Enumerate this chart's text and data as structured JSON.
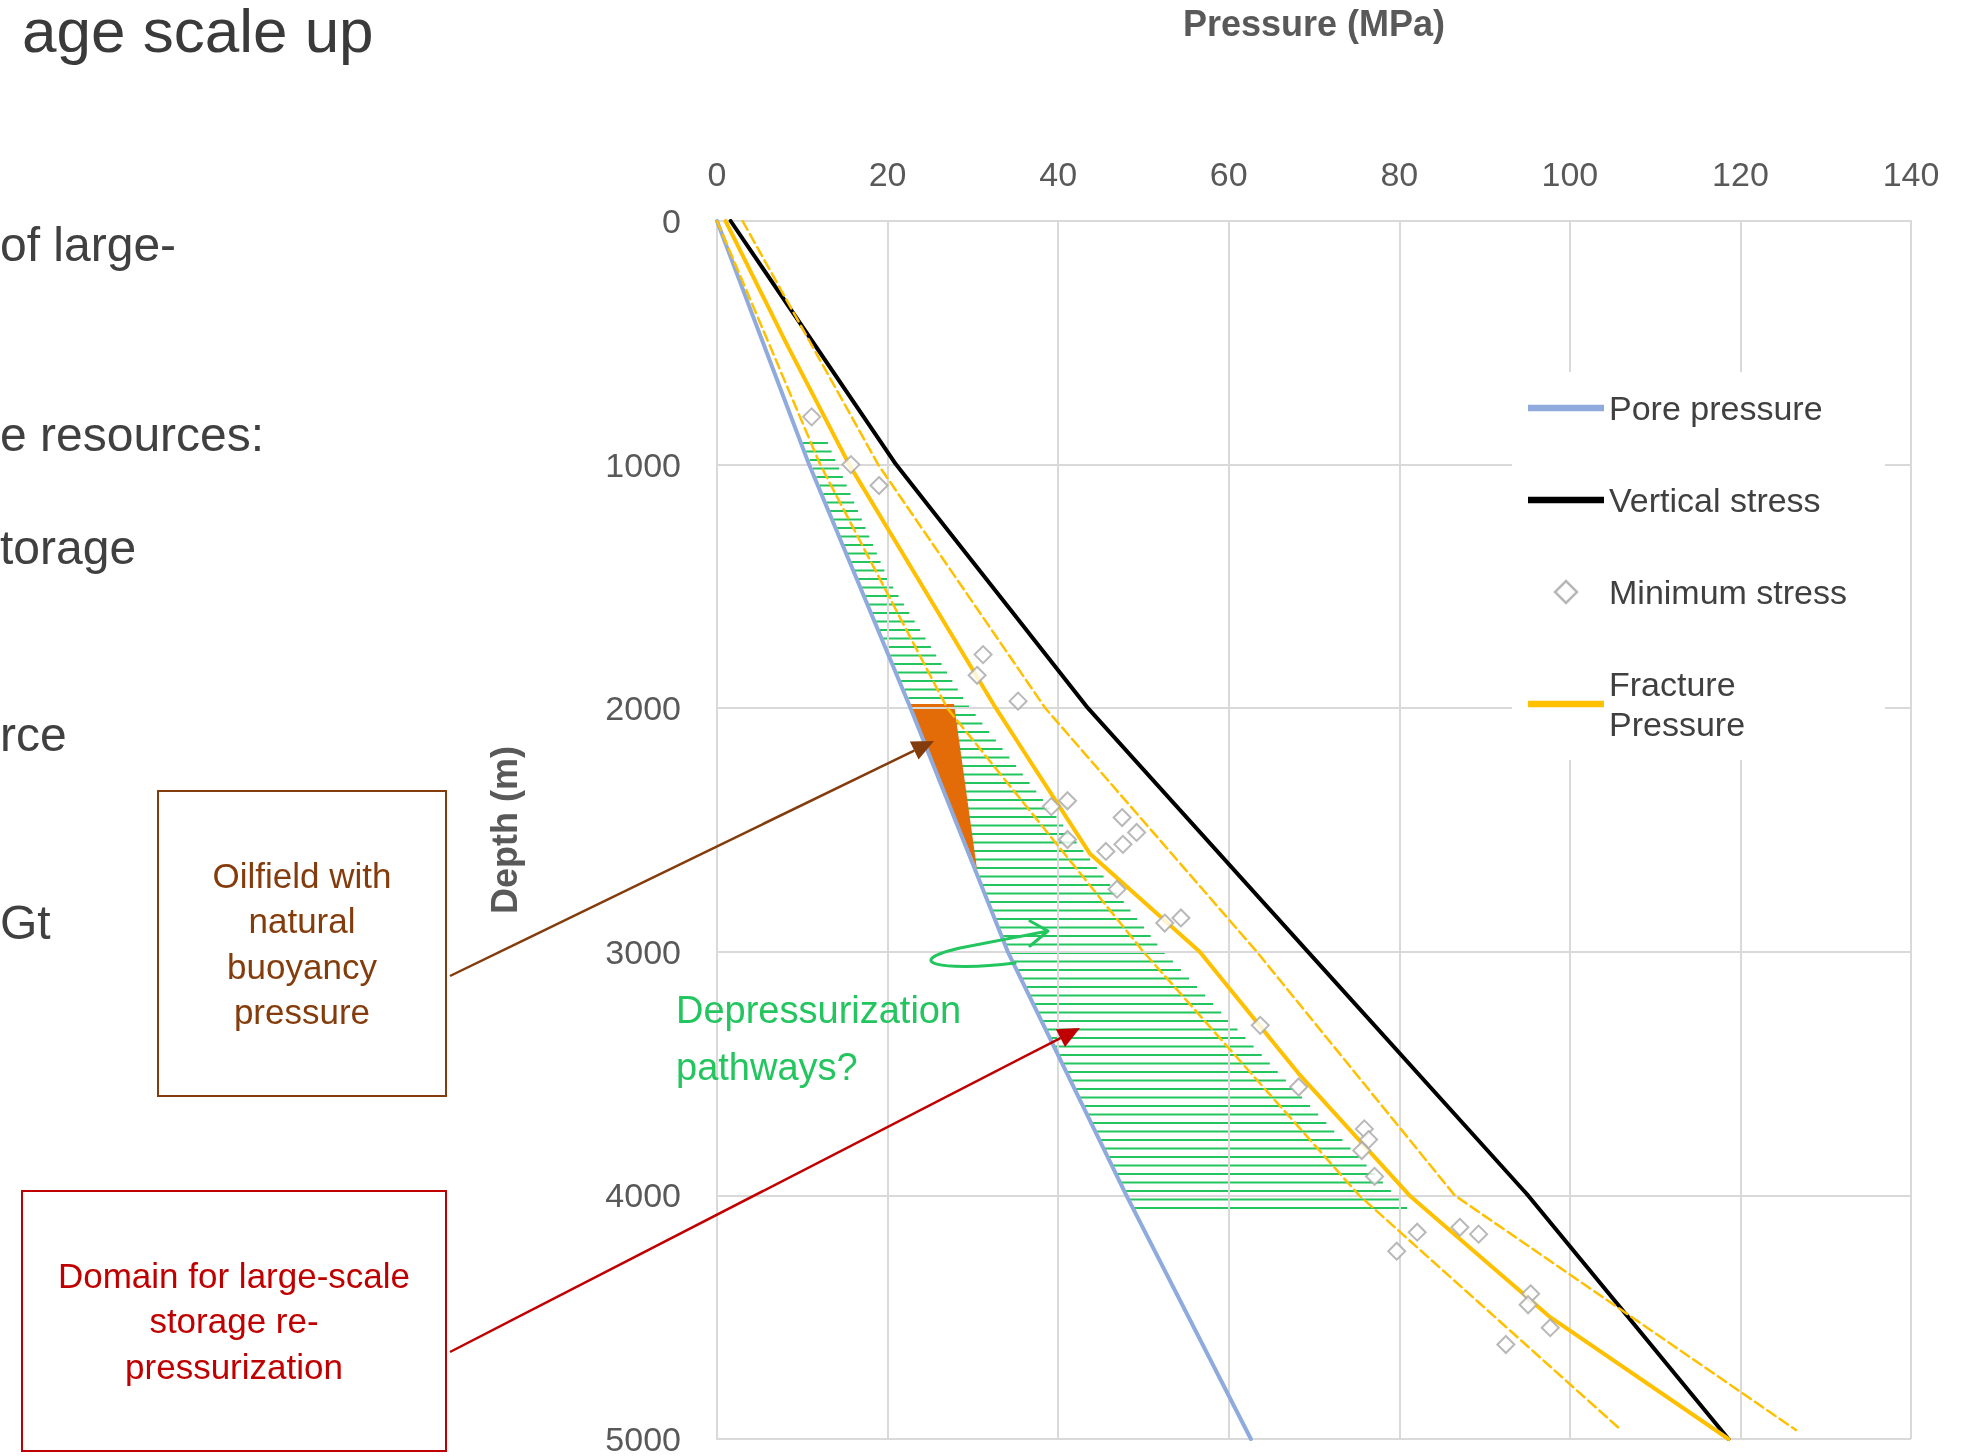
{
  "chart_data": {
    "type": "line",
    "xlabel": "Pressure (MPa)",
    "ylabel": "Depth (m)",
    "xlim": [
      0,
      140
    ],
    "xticks": [
      0,
      20,
      40,
      60,
      80,
      100,
      120,
      140
    ],
    "ylim": [
      5000,
      0
    ],
    "yticks": [
      0,
      1000,
      2000,
      3000,
      4000,
      5000
    ],
    "grid": true,
    "legend": "right",
    "marker": "none",
    "line_style": "solid",
    "annotations": [
      "age scale up",
      "of large-",
      "e resources:",
      "torage",
      "rce",
      "Gt",
      "Oilfield with natural buoyancy pressure",
      "Domain for large-scale storage re-pressurization",
      "Depressurization pathways?"
    ],
    "series": [
      {
        "name": "Pore pressure",
        "type": "line",
        "color": "#8faadc",
        "x": [
          0,
          10.8,
          22.7,
          34.1,
          48,
          62.6
        ],
        "values": [
          0,
          1000,
          2000,
          3000,
          4000,
          5000
        ]
      },
      {
        "name": "Vertical stress",
        "type": "line",
        "color": "#000000",
        "x": [
          1.6,
          21,
          43.5,
          69.3,
          95.1,
          118.6
        ],
        "values": [
          0,
          1000,
          2000,
          3000,
          4000,
          5000
        ]
      },
      {
        "name": "Minimum stress",
        "type": "scatter",
        "marker": "diamond",
        "color": "#a6a6a6",
        "x": [
          11.1,
          15.7,
          19.0,
          31.2,
          30.5,
          35.3,
          39.2,
          41.1,
          41.1,
          47.5,
          49.2,
          47.6,
          45.6,
          46.9,
          52.5,
          54.4,
          63.7,
          68.2,
          75.9,
          76.4,
          75.6,
          77.1,
          82.1,
          87.1,
          89.3,
          79.7,
          95.4,
          95.1,
          97.7,
          92.5
        ],
        "values": [
          804,
          1000,
          1086,
          1780,
          1865,
          1971,
          2404,
          2380,
          2539,
          2449,
          2510,
          2559,
          2588,
          2743,
          2882,
          2861,
          3302,
          3555,
          3727,
          3771,
          3816,
          3922,
          4151,
          4131,
          4159,
          4229,
          4404,
          4449,
          4543,
          4612
        ]
      },
      {
        "name": "Fracture Pressure",
        "type": "line",
        "color": "#ffc000",
        "x": [
          1,
          8.1,
          15.5,
          32.7,
          43.7,
          56.6,
          68.2,
          81.2,
          97.7,
          118.6
        ],
        "values": [
          0,
          500,
          1000,
          2000,
          2596,
          3000,
          3500,
          4000,
          4500,
          5000
        ]
      },
      {
        "type": "line",
        "line_style": "dashed",
        "color": "#ffc000",
        "x": [
          3,
          18.9,
          38.5,
          63.3,
          86.5,
          126.5
        ],
        "values": [
          0,
          1000,
          2000,
          3000,
          4000,
          4963
        ]
      },
      {
        "type": "line",
        "line_style": "dashed",
        "color": "#ffc000",
        "x": [
          0,
          12.1,
          27,
          50,
          75.3,
          106
        ],
        "values": [
          0,
          1000,
          2000,
          3000,
          4000,
          4963
        ]
      }
    ]
  }
}
